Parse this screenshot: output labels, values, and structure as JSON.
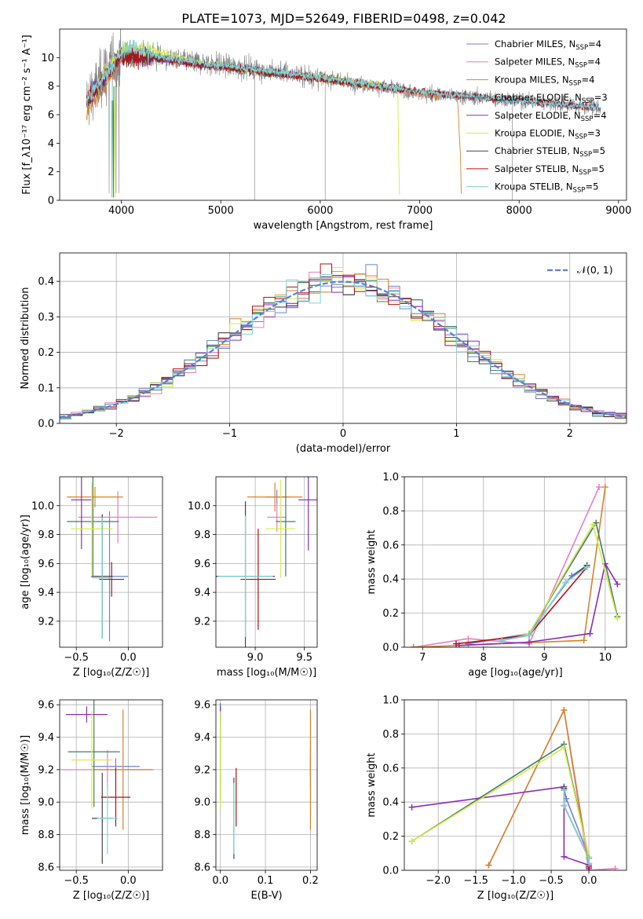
{
  "figure_title": "PLATE=1073, MJD=52649, FIBERID=0498, z=0.042",
  "colors": {
    "Chabrier MILES": "#6b83d6",
    "Salpeter MILES": "#e87ec6",
    "Kroupa MILES": "#d9822b",
    "Chabrier ELODIE": "#3f7f6b",
    "Salpeter ELODIE": "#8e2bb8",
    "Kroupa ELODIE": "#d8ea4a",
    "Chabrier STELIB": "#444444",
    "Salpeter STELIB": "#b30f0f",
    "Kroupa STELIB": "#7fd6d9",
    "data": "#808080",
    "gauss": "#5a7fd6"
  },
  "chart_data": [
    {
      "id": "spectrum",
      "type": "line",
      "xlabel": "wavelength [Angstrom, rest frame]",
      "ylabel": "Flux [f_λ10⁻¹⁷ erg cm⁻² s⁻¹ A⁻¹]",
      "xlim": [
        3380,
        9080
      ],
      "ylim": [
        0,
        12
      ],
      "xticks": [
        "4000",
        "5000",
        "6000",
        "7000",
        "8000",
        "9000"
      ],
      "yticks": [
        "0",
        "2",
        "4",
        "6",
        "8",
        "10"
      ],
      "legend_position": "upper-right",
      "series": [
        {
          "name": "Chabrier MILES, N_SSP=4",
          "legend_main": "Chabrier MILES, N",
          "legend_sub": "SSP",
          "legend_tail": "=4",
          "color_key": "Chabrier MILES",
          "x": [
            3650,
            4000,
            4300,
            4700,
            5200,
            6000,
            7000,
            7400,
            8000,
            8800
          ],
          "y": [
            7.0,
            10.3,
            10.1,
            9.7,
            9.3,
            8.6,
            7.5,
            7.3,
            7.0,
            6.5
          ]
        },
        {
          "name": "Salpeter MILES, N_SSP=4",
          "legend_main": "Salpeter MILES, N",
          "legend_sub": "SSP",
          "legend_tail": "=4",
          "color_key": "Salpeter MILES",
          "x": [
            3650,
            4000,
            4300,
            4700,
            5200,
            6000,
            7000,
            7400
          ],
          "y": [
            7.0,
            10.2,
            10.0,
            9.6,
            9.2,
            8.5,
            7.5,
            7.3
          ]
        },
        {
          "name": "Kroupa MILES, N_SSP=4",
          "legend_main": "Kroupa MILES, N",
          "legend_sub": "SSP",
          "legend_tail": "=4",
          "color_key": "Kroupa MILES",
          "x": [
            3650,
            3700,
            4000,
            4300,
            4700,
            5200,
            6000,
            7000,
            7380,
            7410,
            7420
          ],
          "y": [
            6.2,
            6.6,
            10.0,
            10.0,
            9.6,
            9.2,
            8.5,
            7.5,
            7.3,
            3.0,
            0
          ]
        },
        {
          "name": "Chabrier ELODIE, N_SSP=3",
          "legend_main": "Chabrier ELODIE, N",
          "legend_sub": "SSP",
          "legend_tail": "=3",
          "color_key": "Chabrier ELODIE",
          "x": [
            3650,
            4000,
            4300,
            4700,
            5200,
            6000,
            6790
          ],
          "y": [
            7.0,
            10.2,
            10.1,
            9.6,
            9.2,
            8.6,
            7.9
          ]
        },
        {
          "name": "Salpeter ELODIE, N_SSP=4",
          "legend_main": "Salpeter ELODIE, N",
          "legend_sub": "SSP",
          "legend_tail": "=4",
          "color_key": "Salpeter ELODIE",
          "x": [
            3650,
            4000,
            4300,
            4700,
            5200,
            6000,
            6790
          ],
          "y": [
            7.0,
            10.2,
            10.0,
            9.6,
            9.2,
            8.6,
            7.9
          ]
        },
        {
          "name": "Kroupa ELODIE, N_SSP=3",
          "legend_main": "Kroupa ELODIE, N",
          "legend_sub": "SSP",
          "legend_tail": "=3",
          "color_key": "Kroupa ELODIE",
          "x": [
            3650,
            4000,
            4300,
            4700,
            5200,
            6000,
            6780,
            6790,
            6800
          ],
          "y": [
            7.0,
            10.6,
            10.6,
            9.8,
            9.2,
            8.6,
            7.9,
            3.0,
            0
          ]
        },
        {
          "name": "Chabrier STELIB, N_SSP=5",
          "legend_main": "Chabrier STELIB, N",
          "legend_sub": "SSP",
          "legend_tail": "=5",
          "color_key": "Chabrier STELIB",
          "x": [
            3650,
            4000,
            4300,
            4700,
            5200,
            6000,
            7000,
            8000,
            8800
          ],
          "y": [
            7.0,
            10.1,
            10.0,
            9.6,
            9.2,
            8.5,
            7.6,
            7.0,
            6.5
          ]
        },
        {
          "name": "Salpeter STELIB, N_SSP=5",
          "legend_main": "Salpeter STELIB, N",
          "legend_sub": "SSP",
          "legend_tail": "=5",
          "color_key": "Salpeter STELIB",
          "x": [
            3650,
            4000,
            4300,
            4700,
            5200,
            6000,
            7000,
            8000,
            8800
          ],
          "y": [
            7.0,
            10.1,
            10.0,
            9.6,
            9.2,
            8.5,
            7.6,
            7.0,
            6.5
          ]
        },
        {
          "name": "Kroupa STELIB, N_SSP=5",
          "legend_main": "Kroupa STELIB, N",
          "legend_sub": "SSP",
          "legend_tail": "=5",
          "color_key": "Kroupa STELIB",
          "x": [
            3650,
            4000,
            4100,
            4300,
            4700,
            5200,
            6000,
            7000,
            8000,
            8800
          ],
          "y": [
            7.0,
            10.3,
            10.8,
            10.2,
            9.7,
            9.3,
            8.6,
            7.6,
            7.0,
            6.5
          ]
        }
      ]
    },
    {
      "id": "residuals",
      "type": "line",
      "xlabel": "(data-model)/error",
      "ylabel": "Normed distribution",
      "xlim": [
        -2.5,
        2.5
      ],
      "ylim": [
        0,
        0.48
      ],
      "xticks": [
        "−2",
        "−1",
        "0",
        "1",
        "2"
      ],
      "yticks": [
        "0.0",
        "0.1",
        "0.2",
        "0.3",
        "0.4"
      ],
      "grid": true,
      "legend_position": "upper-right",
      "legend_label": "𝒩(0, 1)",
      "histogram_bins": 50,
      "series_names_from": "spectrum"
    },
    {
      "id": "age_vs_Z",
      "type": "scatter",
      "xlabel": "Z [log₁₀(Z/Z☉)]",
      "ylabel": "age  [log₁₀(age/yr)]",
      "xlim": [
        -0.66,
        0.33
      ],
      "ylim": [
        9.02,
        10.2
      ],
      "xticks": [
        "−0.5",
        "0.0"
      ],
      "yticks": [
        "9.2",
        "9.4",
        "9.6",
        "9.8",
        "10.0"
      ],
      "grid": true,
      "points": [
        {
          "color_key": "Chabrier MILES",
          "x": -0.18,
          "xerr": 0.18,
          "y": 9.51,
          "yerr": 0.45
        },
        {
          "color_key": "Salpeter MILES",
          "x": -0.1,
          "xerr": 0.38,
          "y": 9.92,
          "yerr": 0.18
        },
        {
          "color_key": "Kroupa MILES",
          "x": -0.32,
          "xerr": 0.27,
          "y": 10.06,
          "yerr": 0.07
        },
        {
          "color_key": "Chabrier ELODIE",
          "x": -0.34,
          "xerr": 0.25,
          "y": 9.89,
          "yerr": 0.38
        },
        {
          "color_key": "Salpeter ELODIE",
          "x": -0.45,
          "xerr": 0.1,
          "y": 10.04,
          "yerr": 0.34
        },
        {
          "color_key": "Kroupa ELODIE",
          "x": -0.35,
          "xerr": 0.2,
          "y": 9.84,
          "yerr": 0.32
        },
        {
          "color_key": "Chabrier STELIB",
          "x": -0.25,
          "xerr": 0.1,
          "y": 9.51,
          "yerr": 0.43
        },
        {
          "color_key": "Salpeter STELIB",
          "x": -0.16,
          "xerr": 0.12,
          "y": 9.49,
          "yerr": 0.12
        },
        {
          "color_key": "Kroupa STELIB",
          "x": -0.25,
          "xerr": 0.1,
          "y": 9.5,
          "yerr": 0.42
        }
      ]
    },
    {
      "id": "age_vs_mass",
      "type": "scatter",
      "xlabel": "mass [log₁₀(M/M☉)]",
      "ylabel": "",
      "xlim": [
        8.6,
        9.63
      ],
      "ylim": [
        9.02,
        10.2
      ],
      "xticks": [
        "9.0",
        "9.5"
      ],
      "yticks": [
        "9.2",
        "9.4",
        "9.6",
        "9.8",
        "10.0"
      ],
      "grid": true,
      "points": [
        {
          "color_key": "Chabrier MILES",
          "x": 9.22,
          "xerr": 0.12,
          "y": 10.06,
          "yerr": 0.05
        },
        {
          "color_key": "Salpeter MILES",
          "x": 9.22,
          "xerr": 0.1,
          "y": 9.92,
          "yerr": 0.1
        },
        {
          "color_key": "Kroupa MILES",
          "x": 9.2,
          "xerr": 0.28,
          "y": 10.06,
          "yerr": 0.1
        },
        {
          "color_key": "Chabrier ELODIE",
          "x": 9.31,
          "xerr": 0.1,
          "y": 9.89,
          "yerr": 0.38
        },
        {
          "color_key": "Salpeter ELODIE",
          "x": 9.54,
          "xerr": 0.1,
          "y": 10.04,
          "yerr": 0.35
        },
        {
          "color_key": "Kroupa ELODIE",
          "x": 9.26,
          "xerr": 0.15,
          "y": 9.84,
          "yerr": 0.34
        },
        {
          "color_key": "Chabrier STELIB",
          "x": 8.9,
          "xerr": 0.3,
          "y": 9.51,
          "yerr": 0.52
        },
        {
          "color_key": "Salpeter STELIB",
          "x": 9.03,
          "xerr": 0.18,
          "y": 9.49,
          "yerr": 0.35
        },
        {
          "color_key": "Kroupa STELIB",
          "x": 8.9,
          "xerr": 0.28,
          "y": 9.51,
          "yerr": 0.42
        }
      ]
    },
    {
      "id": "mass_weight_vs_age",
      "type": "line",
      "xlabel": "age  [log₁₀(age/yr)]",
      "ylabel": "mass weight",
      "xlim": [
        6.7,
        10.35
      ],
      "ylim": [
        0,
        1
      ],
      "xticks": [
        "7",
        "8",
        "9",
        "10"
      ],
      "yticks": [
        "0.0",
        "0.2",
        "0.4",
        "0.6",
        "0.8",
        "1.0"
      ],
      "grid": true,
      "series": [
        {
          "color_key": "Chabrier MILES",
          "x": [
            7.75,
            8.75,
            9.45,
            9.7
          ],
          "y": [
            0.02,
            0.08,
            0.42,
            0.48
          ]
        },
        {
          "color_key": "Salpeter MILES",
          "x": [
            6.85,
            7.75,
            8.75,
            9.9
          ],
          "y": [
            0.0,
            0.05,
            0.02,
            0.94
          ]
        },
        {
          "color_key": "Kroupa MILES",
          "x": [
            6.85,
            9.65,
            10.0
          ],
          "y": [
            0.0,
            0.04,
            0.94
          ]
        },
        {
          "color_key": "Chabrier ELODIE",
          "x": [
            8.3,
            8.75,
            9.85,
            10.2
          ],
          "y": [
            0.04,
            0.08,
            0.73,
            0.18
          ]
        },
        {
          "color_key": "Salpeter ELODIE",
          "x": [
            7.6,
            8.75,
            9.75,
            10.0,
            10.2
          ],
          "y": [
            0.01,
            0.03,
            0.08,
            0.49,
            0.37
          ]
        },
        {
          "color_key": "Kroupa ELODIE",
          "x": [
            8.3,
            8.75,
            9.8,
            10.2
          ],
          "y": [
            0.04,
            0.08,
            0.72,
            0.17
          ]
        },
        {
          "color_key": "Chabrier STELIB",
          "x": [
            8.3,
            8.75,
            9.35,
            9.7
          ],
          "y": [
            0.04,
            0.07,
            0.38,
            0.48
          ]
        },
        {
          "color_key": "Salpeter STELIB",
          "x": [
            7.55,
            8.75,
            9.7
          ],
          "y": [
            0.02,
            0.07,
            0.47
          ]
        },
        {
          "color_key": "Kroupa STELIB",
          "x": [
            8.3,
            8.75,
            9.35,
            9.7
          ],
          "y": [
            0.04,
            0.07,
            0.38,
            0.47
          ]
        }
      ]
    },
    {
      "id": "mass_vs_Z",
      "type": "scatter",
      "xlabel": "Z [log₁₀(Z/Z☉)]",
      "ylabel": "mass [log₁₀(M/M☉)]",
      "xlim": [
        -0.66,
        0.33
      ],
      "ylim": [
        8.58,
        9.63
      ],
      "xticks": [
        "−0.5",
        "0.0"
      ],
      "yticks": [
        "8.6",
        "8.8",
        "9.0",
        "9.2",
        "9.4",
        "9.6"
      ],
      "grid": true,
      "points": [
        {
          "color_key": "Chabrier MILES",
          "x": -0.12,
          "xerr": 0.23,
          "y": 9.22,
          "yerr": 0.05
        },
        {
          "color_key": "Salpeter MILES",
          "x": -0.2,
          "xerr": 0.45,
          "y": 9.2,
          "yerr": 0.12
        },
        {
          "color_key": "Kroupa MILES",
          "x": -0.05,
          "xerr": 0.28,
          "y": 9.2,
          "yerr": 0.37
        },
        {
          "color_key": "Chabrier ELODIE",
          "x": -0.33,
          "xerr": 0.25,
          "y": 9.31,
          "yerr": 0.34
        },
        {
          "color_key": "Salpeter ELODIE",
          "x": -0.4,
          "xerr": 0.2,
          "y": 9.54,
          "yerr": 0.05
        },
        {
          "color_key": "Kroupa ELODIE",
          "x": -0.35,
          "xerr": 0.2,
          "y": 9.26,
          "yerr": 0.3
        },
        {
          "color_key": "Chabrier STELIB",
          "x": -0.25,
          "xerr": 0.1,
          "y": 8.9,
          "yerr": 0.28
        },
        {
          "color_key": "Salpeter STELIB",
          "x": -0.12,
          "xerr": 0.14,
          "y": 9.03,
          "yerr": 0.18
        },
        {
          "color_key": "Kroupa STELIB",
          "x": -0.2,
          "xerr": 0.1,
          "y": 8.9,
          "yerr": 0.22
        }
      ]
    },
    {
      "id": "mass_vs_ebv",
      "type": "scatter",
      "xlabel": "E(B-V)",
      "ylabel": "",
      "xlim": [
        -0.01,
        0.215
      ],
      "ylim": [
        8.58,
        9.63
      ],
      "xticks": [
        "0.0",
        "0.1",
        "0.2"
      ],
      "yticks": [
        "8.6",
        "8.8",
        "9.0",
        "9.2",
        "9.4",
        "9.6"
      ],
      "grid": true,
      "points": [
        {
          "color_key": "Chabrier MILES",
          "x": 0.2,
          "xerr": 0,
          "y": 9.22,
          "yerr": 0.05
        },
        {
          "color_key": "Salpeter MILES",
          "x": 0.2,
          "xerr": 0,
          "y": 9.2,
          "yerr": 0.12
        },
        {
          "color_key": "Kroupa MILES",
          "x": 0.2,
          "xerr": 0,
          "y": 9.2,
          "yerr": 0.37
        },
        {
          "color_key": "Chabrier ELODIE",
          "x": 0.0,
          "xerr": 0,
          "y": 9.31,
          "yerr": 0.3
        },
        {
          "color_key": "Salpeter ELODIE",
          "x": 0.0,
          "xerr": 0,
          "y": 9.54,
          "yerr": 0.05
        },
        {
          "color_key": "Kroupa ELODIE",
          "x": 0.0,
          "xerr": 0,
          "y": 9.26,
          "yerr": 0.3
        },
        {
          "color_key": "Chabrier STELIB",
          "x": 0.03,
          "xerr": 0,
          "y": 8.9,
          "yerr": 0.25
        },
        {
          "color_key": "Salpeter STELIB",
          "x": 0.035,
          "xerr": 0,
          "y": 9.03,
          "yerr": 0.18
        },
        {
          "color_key": "Kroupa STELIB",
          "x": 0.03,
          "xerr": 0,
          "y": 8.9,
          "yerr": 0.22
        }
      ]
    },
    {
      "id": "mass_weight_vs_Z",
      "type": "line",
      "xlabel": "Z [log₁₀(Z/Z☉)]",
      "ylabel": "mass weight",
      "xlim": [
        -2.45,
        0.5
      ],
      "ylim": [
        0,
        1
      ],
      "xticks": [
        "−2.0",
        "−1.5",
        "−1.0",
        "−0.5",
        "0.0"
      ],
      "yticks": [
        "0.0",
        "0.2",
        "0.4",
        "0.6",
        "0.8",
        "1.0"
      ],
      "grid": true,
      "series": [
        {
          "color_key": "Chabrier MILES",
          "x": [
            -0.33,
            -0.3,
            0.0,
            0.0
          ],
          "y": [
            0.48,
            0.42,
            0.08,
            0.02
          ]
        },
        {
          "color_key": "Salpeter MILES",
          "x": [
            -1.33,
            -0.33,
            0.0,
            0.35
          ],
          "y": [
            0.03,
            0.94,
            0.0,
            0.01
          ]
        },
        {
          "color_key": "Kroupa MILES",
          "x": [
            -1.33,
            -0.33,
            0.0
          ],
          "y": [
            0.03,
            0.94,
            0.04
          ]
        },
        {
          "color_key": "Chabrier ELODIE",
          "x": [
            -2.35,
            -0.33,
            0.0,
            0.0
          ],
          "y": [
            0.17,
            0.74,
            0.08,
            0.04
          ]
        },
        {
          "color_key": "Salpeter ELODIE",
          "x": [
            -2.35,
            -0.33,
            -0.33,
            0.0,
            0.0
          ],
          "y": [
            0.37,
            0.49,
            0.08,
            0.03,
            0.01
          ]
        },
        {
          "color_key": "Kroupa ELODIE",
          "x": [
            -2.35,
            -0.33,
            0.0,
            0.0
          ],
          "y": [
            0.17,
            0.72,
            0.08,
            0.04
          ]
        },
        {
          "color_key": "Chabrier STELIB",
          "x": [
            -0.33,
            -0.33,
            0.0,
            0.0
          ],
          "y": [
            0.48,
            0.38,
            0.07,
            0.04
          ]
        },
        {
          "color_key": "Salpeter STELIB",
          "x": [
            -0.33,
            -0.33,
            0.0,
            0.0
          ],
          "y": [
            0.47,
            0.38,
            0.07,
            0.02
          ]
        },
        {
          "color_key": "Kroupa STELIB",
          "x": [
            -0.33,
            -0.33,
            0.0,
            0.0
          ],
          "y": [
            0.47,
            0.38,
            0.07,
            0.04
          ]
        }
      ]
    }
  ]
}
